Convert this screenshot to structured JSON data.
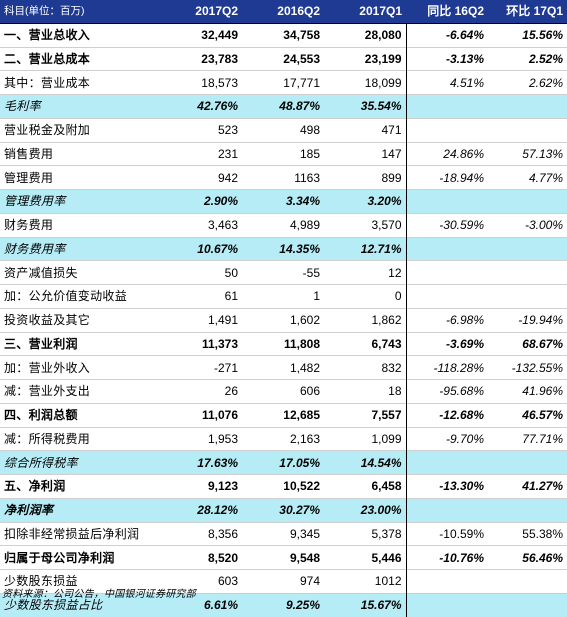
{
  "header": {
    "label": "科目(单位：百万)",
    "cols": [
      "2017Q2",
      "2016Q2",
      "2017Q1",
      "同比 16Q2",
      "环比 17Q1"
    ]
  },
  "rows": [
    {
      "label": "一、营业总收入",
      "v": [
        "32,449",
        "34,758",
        "28,080",
        "-6.64%",
        "15.56%"
      ],
      "style": "bold"
    },
    {
      "label": "二、营业总成本",
      "v": [
        "23,783",
        "24,553",
        "23,199",
        "-3.13%",
        "2.52%"
      ],
      "style": "bold"
    },
    {
      "label": "其中：营业成本",
      "v": [
        "18,573",
        "17,771",
        "18,099",
        "4.51%",
        "2.62%"
      ],
      "style": "normal"
    },
    {
      "label": "毛利率",
      "v": [
        "42.76%",
        "48.87%",
        "35.54%",
        "",
        ""
      ],
      "style": "ratio"
    },
    {
      "label": "营业税金及附加",
      "v": [
        "523",
        "498",
        "471",
        "",
        ""
      ],
      "style": "normal"
    },
    {
      "label": "销售费用",
      "v": [
        "231",
        "185",
        "147",
        "24.86%",
        "57.13%"
      ],
      "style": "normal"
    },
    {
      "label": "管理费用",
      "v": [
        "942",
        "1163",
        "899",
        "-18.94%",
        "4.77%"
      ],
      "style": "normal"
    },
    {
      "label": "管理费用率",
      "v": [
        "2.90%",
        "3.34%",
        "3.20%",
        "",
        ""
      ],
      "style": "ratio"
    },
    {
      "label": "财务费用",
      "v": [
        "3,463",
        "4,989",
        "3,570",
        "-30.59%",
        "-3.00%"
      ],
      "style": "normal"
    },
    {
      "label": "财务费用率",
      "v": [
        "10.67%",
        "14.35%",
        "12.71%",
        "",
        ""
      ],
      "style": "ratio"
    },
    {
      "label": "资产减值损失",
      "v": [
        "50",
        "-55",
        "12",
        "",
        ""
      ],
      "style": "normal"
    },
    {
      "label": "加：公允价值变动收益",
      "v": [
        "61",
        "1",
        "0",
        "",
        ""
      ],
      "style": "normal"
    },
    {
      "label": "投资收益及其它",
      "v": [
        "1,491",
        "1,602",
        "1,862",
        "-6.98%",
        "-19.94%"
      ],
      "style": "normal"
    },
    {
      "label": "三、营业利润",
      "v": [
        "11,373",
        "11,808",
        "6,743",
        "-3.69%",
        "68.67%"
      ],
      "style": "bold"
    },
    {
      "label": "加：营业外收入",
      "v": [
        "-271",
        "1,482",
        "832",
        "-118.28%",
        "-132.55%"
      ],
      "style": "normal"
    },
    {
      "label": "减：营业外支出",
      "v": [
        "26",
        "606",
        "18",
        "-95.68%",
        "41.96%"
      ],
      "style": "normal"
    },
    {
      "label": "四、利润总额",
      "v": [
        "11,076",
        "12,685",
        "7,557",
        "-12.68%",
        "46.57%"
      ],
      "style": "bold"
    },
    {
      "label": "减：所得税费用",
      "v": [
        "1,953",
        "2,163",
        "1,099",
        "-9.70%",
        "77.71%"
      ],
      "style": "normal"
    },
    {
      "label": "综合所得税率",
      "v": [
        "17.63%",
        "17.05%",
        "14.54%",
        "",
        ""
      ],
      "style": "ratio"
    },
    {
      "label": "五、净利润",
      "v": [
        "9,123",
        "10,522",
        "6,458",
        "-13.30%",
        "41.27%"
      ],
      "style": "bold"
    },
    {
      "label": "净利润率",
      "v": [
        "28.12%",
        "30.27%",
        "23.00%",
        "",
        ""
      ],
      "style": "ratio-bold"
    },
    {
      "label": "扣除非经常损益后净利润",
      "v": [
        "8,356",
        "9,345",
        "5,378",
        "-10.59%",
        "55.38%"
      ],
      "style": "normal-plain"
    },
    {
      "label": "归属于母公司净利润",
      "v": [
        "8,520",
        "9,548",
        "5,446",
        "-10.76%",
        "56.46%"
      ],
      "style": "bold"
    },
    {
      "label": "少数股东损益",
      "v": [
        "603",
        "974",
        "1012",
        "",
        ""
      ],
      "style": "normal"
    },
    {
      "label": "少数股东损益占比",
      "v": [
        "6.61%",
        "9.25%",
        "15.67%",
        "",
        ""
      ],
      "style": "ratio"
    }
  ],
  "source": "资料来源：公司公告，中国银河证券研究部",
  "colors": {
    "header_bg": "#1e3a92",
    "ratio_bg": "#b6ecf6"
  }
}
